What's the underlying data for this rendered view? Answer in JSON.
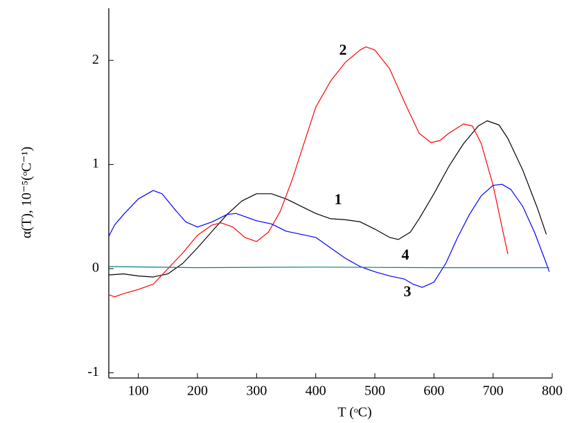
{
  "chart_data": {
    "type": "line",
    "xlabel": "T (ᵒC)",
    "ylabel": "α(T), 10⁻⁵(ᵒC⁻¹)",
    "xlim": [
      50,
      800
    ],
    "ylim": [
      -1.05,
      2.5
    ],
    "xticks": [
      100,
      200,
      300,
      400,
      500,
      600,
      700,
      800
    ],
    "yticks": [
      -1,
      0,
      1,
      2
    ],
    "series": [
      {
        "name": "1",
        "color": "#000000",
        "x": [
          50,
          75,
          100,
          125,
          150,
          175,
          200,
          225,
          250,
          275,
          300,
          325,
          350,
          375,
          400,
          425,
          450,
          475,
          500,
          525,
          540,
          560,
          575,
          600,
          625,
          650,
          675,
          690,
          710,
          725,
          750,
          775,
          790
        ],
        "values": [
          -0.06,
          -0.05,
          -0.07,
          -0.08,
          -0.05,
          0.05,
          0.2,
          0.36,
          0.52,
          0.65,
          0.72,
          0.72,
          0.67,
          0.6,
          0.53,
          0.48,
          0.47,
          0.45,
          0.38,
          0.3,
          0.28,
          0.35,
          0.48,
          0.72,
          0.98,
          1.2,
          1.37,
          1.42,
          1.38,
          1.25,
          0.95,
          0.58,
          0.33
        ]
      },
      {
        "name": "2",
        "color": "#ff0000",
        "x": [
          50,
          60,
          75,
          100,
          125,
          150,
          175,
          200,
          225,
          240,
          260,
          280,
          300,
          320,
          340,
          360,
          380,
          400,
          425,
          450,
          475,
          485,
          500,
          525,
          550,
          575,
          595,
          610,
          625,
          650,
          665,
          680,
          700,
          715,
          725
        ],
        "values": [
          -0.25,
          -0.27,
          -0.24,
          -0.2,
          -0.15,
          0,
          0.15,
          0.32,
          0.42,
          0.44,
          0.4,
          0.3,
          0.26,
          0.35,
          0.55,
          0.85,
          1.2,
          1.55,
          1.8,
          1.98,
          2.1,
          2.13,
          2.1,
          1.92,
          1.6,
          1.3,
          1.21,
          1.23,
          1.3,
          1.39,
          1.37,
          1.2,
          0.8,
          0.4,
          0.14
        ]
      },
      {
        "name": "3",
        "color": "#0000ff",
        "x": [
          50,
          60,
          75,
          100,
          125,
          140,
          160,
          180,
          200,
          225,
          250,
          265,
          280,
          300,
          325,
          350,
          375,
          400,
          425,
          450,
          475,
          500,
          525,
          550,
          565,
          580,
          600,
          620,
          640,
          660,
          680,
          700,
          715,
          730,
          750,
          770,
          790,
          795
        ],
        "values": [
          0.31,
          0.42,
          0.52,
          0.67,
          0.75,
          0.72,
          0.58,
          0.45,
          0.4,
          0.45,
          0.52,
          0.53,
          0.5,
          0.46,
          0.43,
          0.36,
          0.33,
          0.3,
          0.2,
          0.1,
          0.02,
          -0.03,
          -0.07,
          -0.1,
          -0.15,
          -0.18,
          -0.13,
          0.05,
          0.3,
          0.52,
          0.7,
          0.8,
          0.81,
          0.76,
          0.6,
          0.35,
          0.05,
          -0.03
        ]
      },
      {
        "name": "4",
        "color": "#008080",
        "x": [
          50,
          200,
          400,
          600,
          795
        ],
        "values": [
          0.02,
          0.01,
          0.015,
          0.01,
          0.01
        ]
      }
    ]
  }
}
